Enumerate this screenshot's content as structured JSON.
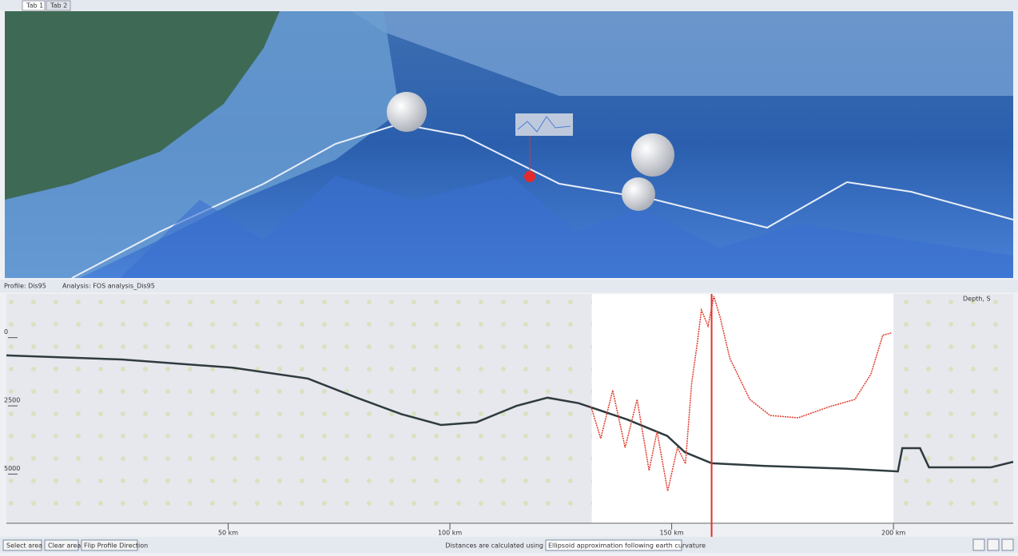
{
  "tabs": [
    "Tab 1",
    "Tab 2"
  ],
  "panel": {
    "profile": "Profile: Dis95",
    "analysis": "Analysis: FOS analysis_Dis95"
  },
  "profile": {
    "type": "line",
    "xlim": [
      0,
      227
    ],
    "ylim": [
      -1600,
      6800
    ],
    "y2lim": [
      0,
      100
    ],
    "xticks": [
      {
        "value": 50,
        "label": "50 km"
      },
      {
        "value": 100,
        "label": "100 km"
      },
      {
        "value": 150,
        "label": "150 km"
      },
      {
        "value": 200,
        "label": "200 km"
      }
    ],
    "yticks": [
      0,
      2500,
      5000
    ],
    "selection": [
      132,
      200
    ],
    "cursor": 159,
    "series": [
      {
        "name": "Depth, S",
        "color": "#2f3b3f",
        "x": [
          0,
          26,
          51,
          68,
          79,
          89,
          98,
          106,
          115,
          122,
          129,
          140,
          149,
          153,
          159,
          171,
          189,
          201,
          202,
          206,
          208,
          222,
          227
        ],
        "values": [
          650,
          800,
          1100,
          1500,
          2200,
          2800,
          3200,
          3100,
          2500,
          2200,
          2400,
          3000,
          3600,
          4200,
          4600,
          4700,
          4800,
          4900,
          4050,
          4050,
          4750,
          4750,
          4550
        ]
      },
      {
        "color": "#e03c2c",
        "axis": "y2",
        "x": [
          131.8,
          134,
          136.7,
          139.5,
          142.2,
          144.9,
          146.7,
          149.1,
          151.3,
          153.1,
          154.5,
          155.8,
          156.7,
          158.2,
          159.5,
          160.9,
          163.1,
          167.6,
          172.2,
          178.5,
          185.8,
          191.3,
          194.9,
          197.6,
          199.5
        ],
        "values": [
          51,
          37,
          58,
          33,
          54,
          23,
          40,
          14,
          33,
          26,
          61,
          79,
          93,
          86,
          99,
          90,
          72,
          54,
          47,
          46,
          51,
          54,
          65,
          82,
          83
        ]
      }
    ]
  },
  "footer": {
    "buttons": [
      "Select area",
      "Clear area",
      "Flip Profile Direction"
    ],
    "note": "Distances are calculated using",
    "method": "Ellipsoid approximation following earth curvature"
  }
}
